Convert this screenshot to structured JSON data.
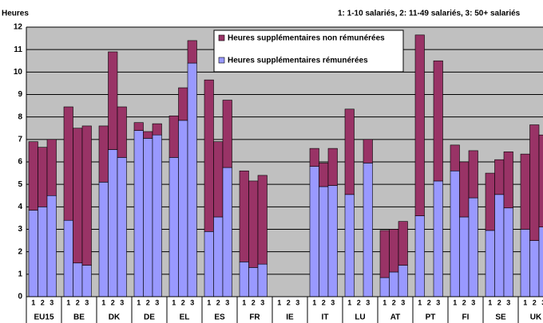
{
  "chart_data": {
    "type": "stacked_bar",
    "y_label": "Heures",
    "note": "1: 1-10 salariés, 2: 11-49 salariés, 3: 50+ salariés",
    "groups": [
      "EU15",
      "BE",
      "DK",
      "DE",
      "EL",
      "ES",
      "FR",
      "IE",
      "IT",
      "LU",
      "AT",
      "PT",
      "FI",
      "SE",
      "UK"
    ],
    "categories": [
      "1",
      "2",
      "3",
      "1",
      "2",
      "3",
      "1",
      "2",
      "3",
      "1",
      "2",
      "3",
      "1",
      "2",
      "3",
      "1",
      "2",
      "3",
      "1",
      "2",
      "3",
      "1",
      "2",
      "3",
      "1",
      "2",
      "3",
      "1",
      "2",
      "3",
      "1",
      "2",
      "3",
      "1",
      "2",
      "3",
      "1",
      "2",
      "3",
      "1",
      "2",
      "3",
      "1",
      "2",
      "3"
    ],
    "series": [
      {
        "name": "Heures supplémentaires non rémunérées",
        "color": "#993366",
        "values": [
          3.05,
          2.65,
          2.5,
          5.05,
          6.0,
          6.2,
          2.5,
          4.35,
          2.25,
          0.35,
          0.3,
          0.5,
          1.85,
          1.45,
          1.0,
          6.75,
          3.35,
          3.0,
          4.05,
          3.85,
          3.95,
          null,
          null,
          null,
          0.8,
          1.05,
          1.65,
          3.8,
          null,
          1.05,
          2.1,
          1.9,
          1.95,
          8.05,
          null,
          5.35,
          1.15,
          2.45,
          2.1,
          2.55,
          1.55,
          2.5,
          3.35,
          5.15,
          4.1
        ]
      },
      {
        "name": "Heures supplémentaires rémunérées",
        "color": "#9999ff",
        "values": [
          3.85,
          4.0,
          4.5,
          3.4,
          1.5,
          1.4,
          5.1,
          6.55,
          6.2,
          7.4,
          7.05,
          7.2,
          6.2,
          7.85,
          10.4,
          2.9,
          3.55,
          5.75,
          1.55,
          1.3,
          1.45,
          null,
          null,
          null,
          5.8,
          4.9,
          4.95,
          4.55,
          null,
          5.95,
          0.85,
          1.1,
          1.4,
          3.6,
          null,
          5.15,
          5.6,
          3.55,
          4.4,
          2.95,
          4.55,
          3.95,
          3.0,
          2.5,
          3.1
        ]
      }
    ],
    "ylim": [
      0,
      12
    ],
    "yticks": [
      0,
      1,
      2,
      3,
      4,
      5,
      6,
      7,
      8,
      9,
      10,
      11,
      12
    ],
    "grid": true
  }
}
